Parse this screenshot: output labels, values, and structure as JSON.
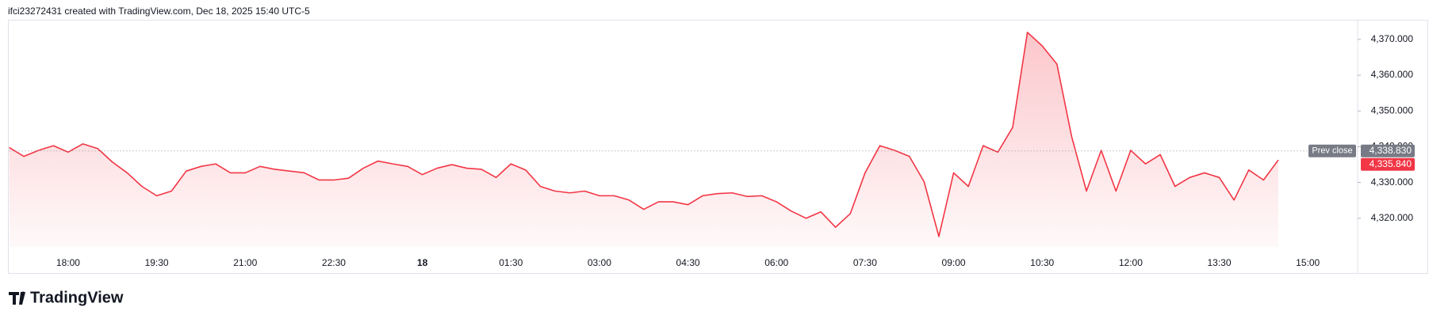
{
  "header": {
    "text": "ifci23272431 created with TradingView.com, Dec 18, 2025 15:40 UTC-5"
  },
  "chart_data": {
    "type": "line",
    "categories": [
      null,
      null,
      null,
      null,
      "18:00",
      null,
      null,
      null,
      null,
      null,
      "19:30",
      null,
      null,
      null,
      null,
      null,
      "21:00",
      null,
      null,
      null,
      null,
      null,
      "22:30",
      null,
      null,
      null,
      null,
      null,
      "18",
      null,
      null,
      null,
      null,
      null,
      "01:30",
      null,
      null,
      null,
      null,
      null,
      "03:00",
      null,
      null,
      null,
      null,
      null,
      "04:30",
      null,
      null,
      null,
      null,
      null,
      "06:00",
      null,
      null,
      null,
      null,
      null,
      "07:30",
      null,
      null,
      null,
      null,
      null,
      "09:00",
      null,
      null,
      null,
      null,
      null,
      "10:30",
      null,
      null,
      null,
      null,
      null,
      "12:00",
      null,
      null,
      null,
      null,
      null,
      "13:30",
      null,
      null,
      null,
      null,
      null,
      "15:00",
      null,
      null,
      null
    ],
    "values": [
      4339.8,
      4337.3,
      4339,
      4340.3,
      4338.5,
      4340.8,
      4339.5,
      4335.7,
      4332.7,
      4328.9,
      4326.3,
      4327.6,
      4333.2,
      4334.5,
      4335.2,
      4332.7,
      4332.7,
      4334.5,
      4333.7,
      4333.2,
      4332.7,
      4330.7,
      4330.7,
      4331.2,
      4334,
      4336,
      4335.2,
      4334.5,
      4332.2,
      4334,
      4335,
      4334,
      4333.7,
      4331.4,
      4335.2,
      4333.5,
      4328.9,
      4327.6,
      4327.1,
      4327.6,
      4326.3,
      4326.3,
      4325.1,
      4322.5,
      4324.6,
      4324.6,
      4323.8,
      4326.3,
      4326.9,
      4327.1,
      4326.1,
      4326.3,
      4324.6,
      4322,
      4320,
      4321.8,
      4317.5,
      4321.3,
      4332.7,
      4340.3,
      4339,
      4337.3,
      4330.2,
      4314.9,
      4332.7,
      4328.9,
      4340.3,
      4338.5,
      4345.4,
      4372,
      4368.2,
      4363.1,
      4342.8,
      4327.6,
      4339,
      4327.6,
      4339,
      4335.2,
      4337.8,
      4328.9,
      4331.4,
      4332.7,
      4331.4,
      4325.1,
      4333.5,
      4330.7,
      4336.3,
      null,
      null,
      null,
      null,
      null
    ],
    "color": "#f23645",
    "fill": true,
    "ylim": [
      4312,
      4375.5
    ],
    "yticks": [
      {
        "value": 4320,
        "label": "4,320.000"
      },
      {
        "value": 4330,
        "label": "4,330.000"
      },
      {
        "value": 4340,
        "label": "4,340.000"
      },
      {
        "value": 4350,
        "label": "4,350.000"
      },
      {
        "value": 4360,
        "label": "4,360.000"
      },
      {
        "value": 4370,
        "label": "4,370.000"
      }
    ],
    "prev_close": {
      "label": "Prev close",
      "value": 4338.83,
      "value_label": "4,338.830"
    },
    "last_price": {
      "value": 4335.84,
      "label": "4,335.840"
    }
  },
  "footer": {
    "logo": "TradingView"
  }
}
